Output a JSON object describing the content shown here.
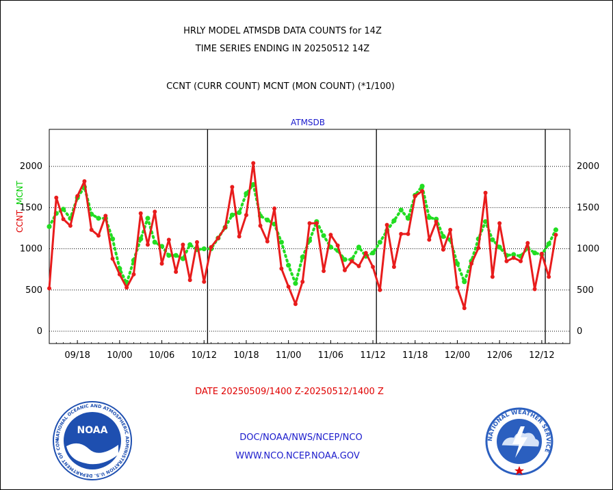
{
  "header": {
    "line1": "HRLY MODEL ATMSDB DATA COUNTS for 14Z",
    "line2": "TIME SERIES ENDING IN 20250512 14Z",
    "line3": "CCNT (CURR COUNT) MCNT (MON COUNT) (*1/100)"
  },
  "footer": {
    "date_range": "DATE 20250509/1400 Z-20250512/1400 Z",
    "org_path": "DOC/NOAA/NWS/NCEP/NCO",
    "website": "WWW.NCO.NCEP.NOAA.GOV"
  },
  "logos": {
    "left": {
      "name": "NOAA",
      "ring_text": "NATIONAL OCEANIC AND ATMOSPHERIC ADMINISTRATION  U.S. DEPARTMENT OF COMMERCE"
    },
    "right": {
      "ring_text": "NATIONAL WEATHER SERVICE"
    }
  },
  "colors": {
    "ccnt": "#e81c1c",
    "mcnt": "#22dd22",
    "title_blue": "#1a1acc",
    "noaa_blue": "#1e4fb0",
    "nws_blue": "#2b5fbf"
  },
  "chart_data": {
    "type": "line",
    "title": "ATMSDB",
    "ylabel_left": [
      "CCNT",
      "MCNT"
    ],
    "yticks": [
      0,
      500,
      1000,
      1500,
      2000
    ],
    "ylim": [
      -150,
      2450
    ],
    "xlim": [
      0,
      74
    ],
    "x_tick_labels": [
      {
        "x": 4,
        "label": "09/18"
      },
      {
        "x": 10,
        "label": "10/00"
      },
      {
        "x": 16,
        "label": "10/06"
      },
      {
        "x": 22,
        "label": "10/12"
      },
      {
        "x": 28,
        "label": "10/18"
      },
      {
        "x": 34,
        "label": "11/00"
      },
      {
        "x": 40,
        "label": "11/06"
      },
      {
        "x": 46,
        "label": "11/12"
      },
      {
        "x": 52,
        "label": "11/18"
      },
      {
        "x": 58,
        "label": "12/00"
      },
      {
        "x": 64,
        "label": "12/06"
      },
      {
        "x": 70,
        "label": "12/12"
      }
    ],
    "day_boundaries": [
      22.5,
      46.5,
      70.5
    ],
    "grid": "horizontal dashed",
    "series": [
      {
        "name": "CCNT",
        "style": "solid",
        "values": [
          520,
          1620,
          1360,
          1280,
          1640,
          1820,
          1230,
          1160,
          1400,
          880,
          690,
          530,
          690,
          1430,
          1050,
          1450,
          820,
          1110,
          720,
          1050,
          620,
          1080,
          600,
          1020,
          1130,
          1260,
          1750,
          1150,
          1410,
          2040,
          1280,
          1090,
          1490,
          760,
          540,
          330,
          600,
          1310,
          1310,
          730,
          1170,
          1040,
          740,
          850,
          790,
          950,
          780,
          500,
          1290,
          780,
          1180,
          1180,
          1640,
          1700,
          1110,
          1330,
          990,
          1230,
          530,
          280,
          820,
          1010,
          1680,
          660,
          1310,
          850,
          890,
          850,
          1070,
          510,
          940,
          660,
          1170
        ]
      },
      {
        "name": "MCNT",
        "style": "dotted",
        "values": [
          1270,
          1430,
          1480,
          1370,
          1620,
          1750,
          1420,
          1370,
          1370,
          1120,
          760,
          580,
          860,
          1120,
          1370,
          1080,
          1030,
          920,
          920,
          880,
          1050,
          990,
          1000,
          1000,
          1130,
          1260,
          1410,
          1440,
          1670,
          1780,
          1400,
          1350,
          1300,
          1080,
          800,
          580,
          900,
          1100,
          1330,
          1160,
          1020,
          980,
          870,
          870,
          1020,
          910,
          950,
          1080,
          1220,
          1340,
          1470,
          1370,
          1650,
          1760,
          1380,
          1360,
          1150,
          1110,
          820,
          600,
          850,
          1120,
          1330,
          1110,
          1020,
          920,
          930,
          910,
          1010,
          950,
          930,
          1060,
          1230
        ]
      }
    ]
  }
}
